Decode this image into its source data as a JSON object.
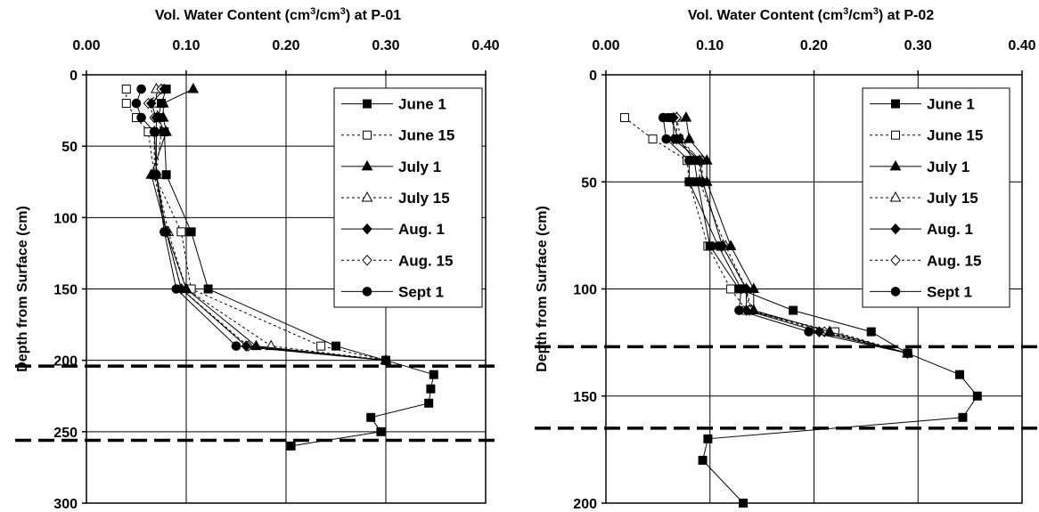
{
  "chart_data": [
    {
      "type": "line",
      "title": "",
      "xlabel": "Vol. Water Content (cm3/cm3) at P-01",
      "xlabel_parts": [
        "Vol. Water Content (cm",
        "3",
        "/cm",
        "3",
        ") at P-01"
      ],
      "ylabel": "Depth from Surface (cm)",
      "xlim": [
        0,
        0.4
      ],
      "ylim": [
        0,
        300
      ],
      "y_inverted": true,
      "x_axis_position": "top",
      "xticks": [
        "0.00",
        "0.10",
        "0.20",
        "0.30",
        "0.40"
      ],
      "xtick_values": [
        0,
        0.1,
        0.2,
        0.3,
        0.4
      ],
      "yticks": [
        "0",
        "50",
        "100",
        "150",
        "200",
        "250",
        "300"
      ],
      "ytick_values": [
        0,
        50,
        100,
        150,
        200,
        250,
        300
      ],
      "grid": true,
      "legend_position": "top-right",
      "hlines": [
        204,
        256
      ],
      "series": [
        {
          "name": "June 1",
          "marker": "square-filled",
          "dash": "solid",
          "points": [
            [
              0.08,
              10
            ],
            [
              0.075,
              20
            ],
            [
              0.072,
              30
            ],
            [
              0.078,
              40
            ],
            [
              0.08,
              70
            ],
            [
              0.105,
              110
            ],
            [
              0.122,
              150
            ],
            [
              0.25,
              190
            ],
            [
              0.3,
              200
            ],
            [
              0.348,
              210
            ],
            [
              0.345,
              220
            ],
            [
              0.343,
              230
            ],
            [
              0.285,
              240
            ],
            [
              0.295,
              250
            ],
            [
              0.205,
              260
            ]
          ]
        },
        {
          "name": "June 15",
          "marker": "square-open",
          "dash": "dotted",
          "points": [
            [
              0.04,
              10
            ],
            [
              0.04,
              20
            ],
            [
              0.05,
              30
            ],
            [
              0.062,
              40
            ],
            [
              0.068,
              70
            ],
            [
              0.095,
              110
            ],
            [
              0.105,
              150
            ],
            [
              0.235,
              190
            ],
            [
              0.3,
              200
            ]
          ]
        },
        {
          "name": "July 1",
          "marker": "triangle-filled",
          "dash": "solid",
          "points": [
            [
              0.107,
              10
            ],
            [
              0.077,
              20
            ],
            [
              0.077,
              30
            ],
            [
              0.08,
              40
            ],
            [
              0.065,
              70
            ],
            [
              0.08,
              110
            ],
            [
              0.1,
              150
            ],
            [
              0.17,
              190
            ],
            [
              0.3,
              200
            ]
          ]
        },
        {
          "name": "July 15",
          "marker": "triangle-open",
          "dash": "dotted",
          "points": [
            [
              0.07,
              10
            ],
            [
              0.07,
              20
            ],
            [
              0.072,
              30
            ],
            [
              0.075,
              40
            ],
            [
              0.07,
              70
            ],
            [
              0.082,
              110
            ],
            [
              0.1,
              150
            ],
            [
              0.185,
              190
            ],
            [
              0.3,
              200
            ]
          ]
        },
        {
          "name": "Aug. 1",
          "marker": "diamond-filled",
          "dash": "solid",
          "points": [
            [
              0.078,
              10
            ],
            [
              0.065,
              20
            ],
            [
              0.07,
              30
            ],
            [
              0.07,
              40
            ],
            [
              0.07,
              70
            ],
            [
              0.08,
              110
            ],
            [
              0.095,
              150
            ],
            [
              0.16,
              190
            ],
            [
              0.3,
              200
            ]
          ]
        },
        {
          "name": "Aug. 15",
          "marker": "diamond-open",
          "dash": "dotted",
          "points": [
            [
              0.075,
              10
            ],
            [
              0.062,
              20
            ],
            [
              0.068,
              30
            ],
            [
              0.068,
              40
            ],
            [
              0.068,
              70
            ],
            [
              0.08,
              110
            ],
            [
              0.095,
              150
            ],
            [
              0.162,
              190
            ],
            [
              0.3,
              200
            ]
          ]
        },
        {
          "name": "Sept 1",
          "marker": "circle-filled",
          "dash": "solid",
          "points": [
            [
              0.055,
              10
            ],
            [
              0.05,
              20
            ],
            [
              0.055,
              30
            ],
            [
              0.068,
              40
            ],
            [
              0.07,
              70
            ],
            [
              0.078,
              110
            ],
            [
              0.09,
              150
            ],
            [
              0.15,
              190
            ],
            [
              0.3,
              200
            ]
          ]
        }
      ]
    },
    {
      "type": "line",
      "title": "",
      "xlabel": "Vol. Water Content (cm3/cm3) at P-02",
      "xlabel_parts": [
        "Vol. Water Content (cm",
        "3",
        "/cm",
        "3",
        ") at P-02"
      ],
      "ylabel": "Depth from Surface (cm)",
      "xlim": [
        0,
        0.4
      ],
      "ylim": [
        0,
        200
      ],
      "y_inverted": true,
      "x_axis_position": "top",
      "xticks": [
        "0.00",
        "0.10",
        "0.20",
        "0.30",
        "0.40"
      ],
      "xtick_values": [
        0,
        0.1,
        0.2,
        0.3,
        0.4
      ],
      "yticks": [
        "0",
        "50",
        "100",
        "150",
        "200"
      ],
      "ytick_values": [
        0,
        50,
        100,
        150,
        200
      ],
      "grid": true,
      "legend_position": "top-right",
      "hlines": [
        127,
        165
      ],
      "series": [
        {
          "name": "June 1",
          "marker": "square-filled",
          "dash": "solid",
          "points": [
            [
              0.062,
              20
            ],
            [
              0.07,
              30
            ],
            [
              0.085,
              40
            ],
            [
              0.088,
              50
            ],
            [
              0.1,
              80
            ],
            [
              0.128,
              100
            ],
            [
              0.18,
              110
            ],
            [
              0.255,
              120
            ],
            [
              0.29,
              130
            ],
            [
              0.34,
              140
            ],
            [
              0.357,
              150
            ],
            [
              0.343,
              160
            ],
            [
              0.098,
              170
            ],
            [
              0.093,
              180
            ],
            [
              0.132,
              200
            ]
          ]
        },
        {
          "name": "June 15",
          "marker": "square-open",
          "dash": "dotted",
          "points": [
            [
              0.018,
              20
            ],
            [
              0.045,
              30
            ],
            [
              0.078,
              40
            ],
            [
              0.08,
              50
            ],
            [
              0.098,
              80
            ],
            [
              0.12,
              100
            ],
            [
              0.135,
              110
            ],
            [
              0.22,
              120
            ],
            [
              0.29,
              130
            ]
          ]
        },
        {
          "name": "July 1",
          "marker": "triangle-filled",
          "dash": "solid",
          "points": [
            [
              0.077,
              20
            ],
            [
              0.08,
              30
            ],
            [
              0.097,
              40
            ],
            [
              0.097,
              50
            ],
            [
              0.12,
              80
            ],
            [
              0.142,
              100
            ],
            [
              0.142,
              110
            ],
            [
              0.215,
              120
            ],
            [
              0.29,
              130
            ]
          ]
        },
        {
          "name": "July 15",
          "marker": "triangle-open",
          "dash": "dotted",
          "points": [
            [
              0.068,
              20
            ],
            [
              0.072,
              30
            ],
            [
              0.09,
              40
            ],
            [
              0.09,
              50
            ],
            [
              0.115,
              80
            ],
            [
              0.135,
              100
            ],
            [
              0.14,
              110
            ],
            [
              0.215,
              120
            ],
            [
              0.29,
              130
            ]
          ]
        },
        {
          "name": "Aug. 1",
          "marker": "diamond-filled",
          "dash": "solid",
          "points": [
            [
              0.065,
              20
            ],
            [
              0.065,
              30
            ],
            [
              0.09,
              40
            ],
            [
              0.093,
              50
            ],
            [
              0.112,
              80
            ],
            [
              0.135,
              100
            ],
            [
              0.135,
              110
            ],
            [
              0.205,
              120
            ],
            [
              0.29,
              130
            ]
          ]
        },
        {
          "name": "Aug. 15",
          "marker": "diamond-open",
          "dash": "dotted",
          "points": [
            [
              0.068,
              20
            ],
            [
              0.068,
              30
            ],
            [
              0.092,
              40
            ],
            [
              0.093,
              50
            ],
            [
              0.112,
              80
            ],
            [
              0.135,
              100
            ],
            [
              0.138,
              110
            ],
            [
              0.21,
              120
            ],
            [
              0.29,
              130
            ]
          ]
        },
        {
          "name": "Sept 1",
          "marker": "circle-filled",
          "dash": "solid",
          "points": [
            [
              0.055,
              20
            ],
            [
              0.058,
              30
            ],
            [
              0.08,
              40
            ],
            [
              0.08,
              50
            ],
            [
              0.108,
              80
            ],
            [
              0.13,
              100
            ],
            [
              0.128,
              110
            ],
            [
              0.195,
              120
            ],
            [
              0.29,
              130
            ]
          ]
        }
      ]
    }
  ]
}
